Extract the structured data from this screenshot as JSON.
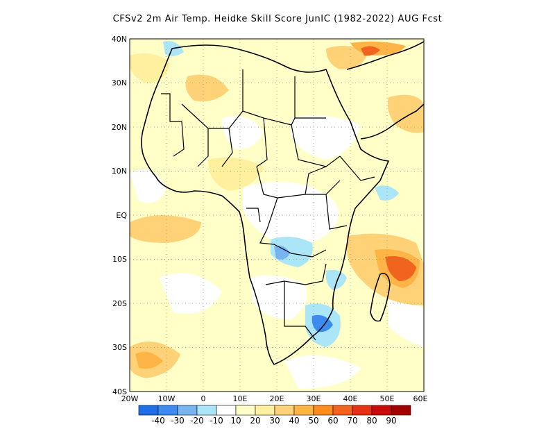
{
  "title": "CFSv2  2m Air Temp. Heidke Skill Score JunIC (1982-2022) AUG Fcst",
  "map": {
    "lat_labels": [
      "40N",
      "30N",
      "20N",
      "10N",
      "EQ",
      "10S",
      "20S",
      "30S",
      "40S"
    ],
    "lon_labels": [
      "20W",
      "10W",
      "0",
      "10E",
      "20E",
      "30E",
      "40E",
      "50E",
      "60E"
    ],
    "extent": {
      "lon_min": -20,
      "lon_max": 60,
      "lat_min": -40,
      "lat_max": 40
    }
  },
  "colorbar": {
    "colors": [
      "#1e6ee6",
      "#3c8cf0",
      "#78b4f0",
      "#aae6f8",
      "#ffffff",
      "#ffffc8",
      "#fff0a0",
      "#ffd278",
      "#ffb446",
      "#ff8c1e",
      "#f0641e",
      "#e63214",
      "#c80a0a",
      "#a00000"
    ],
    "labels": [
      "-40",
      "-30",
      "-20",
      "-10",
      "10",
      "20",
      "30",
      "40",
      "50",
      "60",
      "70",
      "80",
      "90"
    ]
  }
}
